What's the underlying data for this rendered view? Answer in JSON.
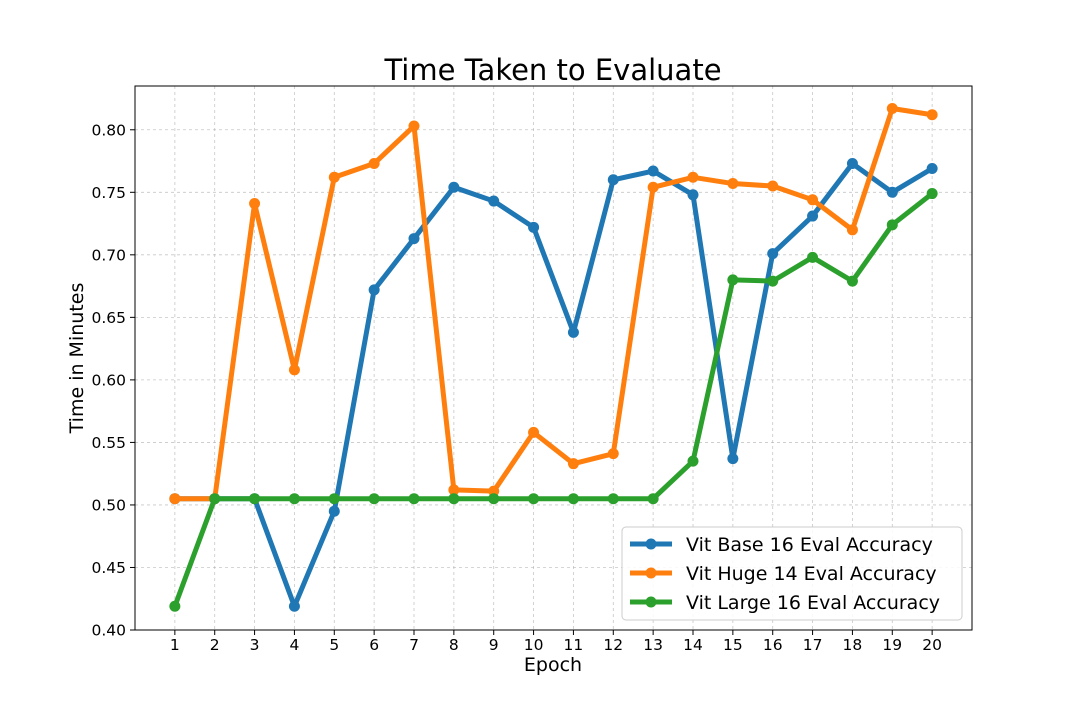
{
  "chart_data": {
    "type": "line",
    "title": "Time Taken to Evaluate",
    "xlabel": "Epoch",
    "ylabel": "Time in Minutes",
    "x": [
      1,
      2,
      3,
      4,
      5,
      6,
      7,
      8,
      9,
      10,
      11,
      12,
      13,
      14,
      15,
      16,
      17,
      18,
      19,
      20
    ],
    "xticks": [
      "1",
      "2",
      "3",
      "4",
      "5",
      "6",
      "7",
      "8",
      "9",
      "10",
      "11",
      "12",
      "13",
      "14",
      "15",
      "16",
      "17",
      "18",
      "19",
      "20"
    ],
    "yticks": [
      "0.40",
      "0.45",
      "0.50",
      "0.55",
      "0.60",
      "0.65",
      "0.70",
      "0.75",
      "0.80"
    ],
    "ylim": [
      0.4,
      0.835
    ],
    "xlim": [
      0,
      21
    ],
    "grid": true,
    "legend_position": "lower-right",
    "series": [
      {
        "name": "Vit Base 16 Eval Accuracy",
        "color": "#1f77b4",
        "values": [
          0.505,
          0.505,
          0.505,
          0.419,
          0.495,
          0.672,
          0.713,
          0.754,
          0.743,
          0.722,
          0.638,
          0.76,
          0.767,
          0.748,
          0.537,
          0.701,
          0.731,
          0.773,
          0.75,
          0.769
        ]
      },
      {
        "name": "Vit Huge 14 Eval Accuracy",
        "color": "#ff7f0e",
        "values": [
          0.505,
          0.505,
          0.741,
          0.608,
          0.762,
          0.773,
          0.803,
          0.512,
          0.511,
          0.558,
          0.533,
          0.541,
          0.754,
          0.762,
          0.757,
          0.755,
          0.744,
          0.72,
          0.817,
          0.812
        ]
      },
      {
        "name": "Vit Large 16 Eval Accuracy",
        "color": "#2ca02c",
        "values": [
          0.419,
          0.505,
          0.505,
          0.505,
          0.505,
          0.505,
          0.505,
          0.505,
          0.505,
          0.505,
          0.505,
          0.505,
          0.505,
          0.535,
          0.68,
          0.679,
          0.698,
          0.679,
          0.724,
          0.749
        ]
      }
    ]
  }
}
